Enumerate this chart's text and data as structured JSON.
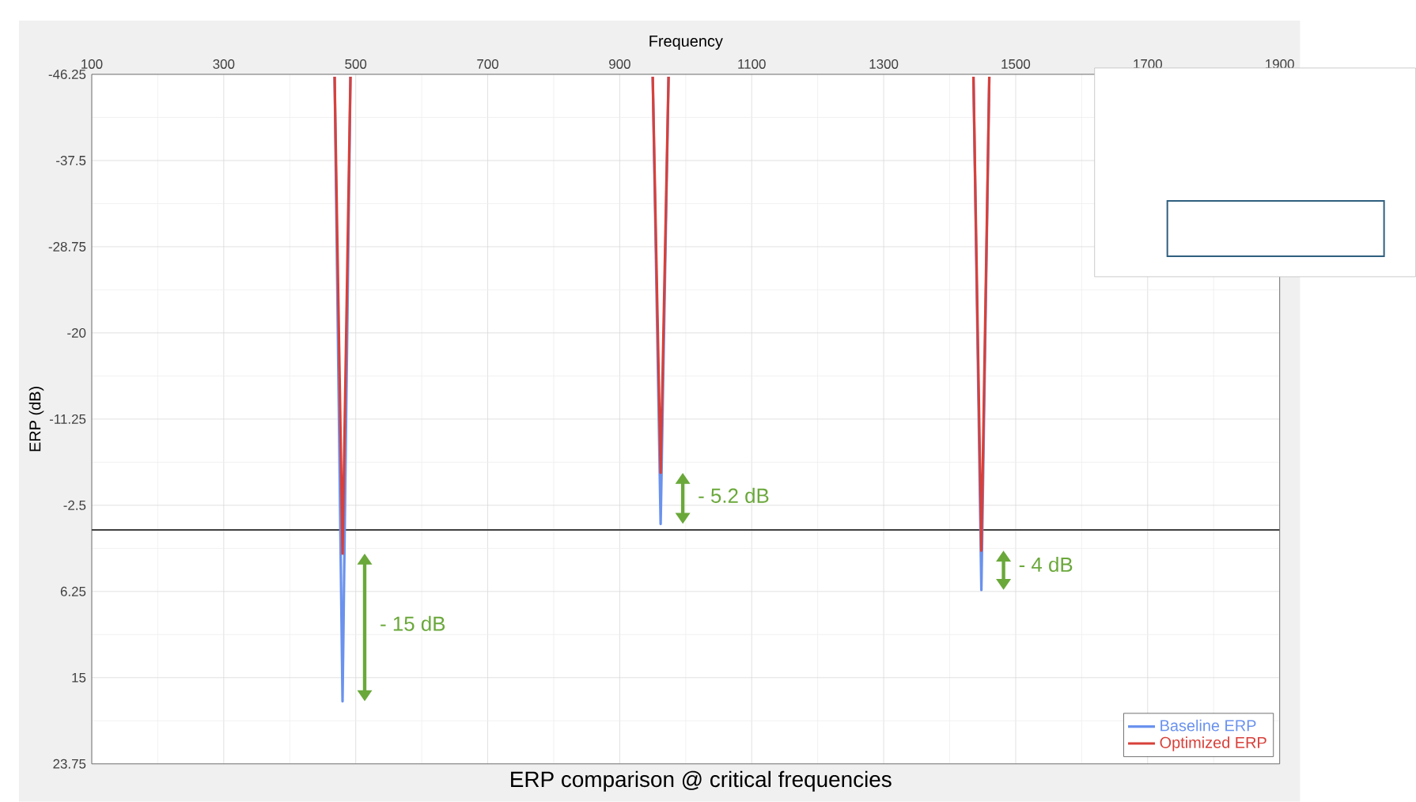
{
  "chart_data": {
    "type": "line",
    "title": "ERP comparison @ critical frequencies",
    "xlabel": "Frequency",
    "ylabel": "ERP (dB)",
    "xlim": [
      100,
      1900
    ],
    "xticks": [
      100,
      300,
      500,
      700,
      900,
      1100,
      1300,
      1500,
      1700,
      1900
    ],
    "ylim": [
      23.75,
      -46.25
    ],
    "yticks": [
      -46.25,
      -37.5,
      -28.75,
      -20,
      -11.25,
      -2.5,
      6.25,
      15,
      23.75
    ],
    "x": [
      468,
      480,
      492,
      720,
      950,
      962,
      974,
      1210,
      1436,
      1448,
      1460
    ],
    "series": [
      {
        "name": "Baseline ERP",
        "color": "#6a92ee",
        "values": [
          -46,
          17.4,
          -46,
          null,
          -46,
          -0.6,
          -46,
          null,
          -46,
          6.1,
          -46
        ]
      },
      {
        "name": "Optimized ERP",
        "color": "#d8403a",
        "values": [
          -46,
          2.4,
          -46,
          null,
          -46,
          -5.8,
          -46,
          null,
          -46,
          2.1,
          -46
        ]
      }
    ],
    "ref_lines": [
      {
        "axis": "y",
        "value": 0,
        "color": "#404040"
      }
    ],
    "annotations": [
      {
        "text": "- 15 dB",
        "x": 480,
        "y": 9.5
      },
      {
        "text": "- 5.2 dB",
        "x": 962,
        "y": -3.5
      },
      {
        "text": "- 4 dB",
        "x": 1448,
        "y": 3.5
      }
    ],
    "grid": true,
    "legend": "bottom right",
    "marker": "none",
    "line_style": "solid"
  }
}
